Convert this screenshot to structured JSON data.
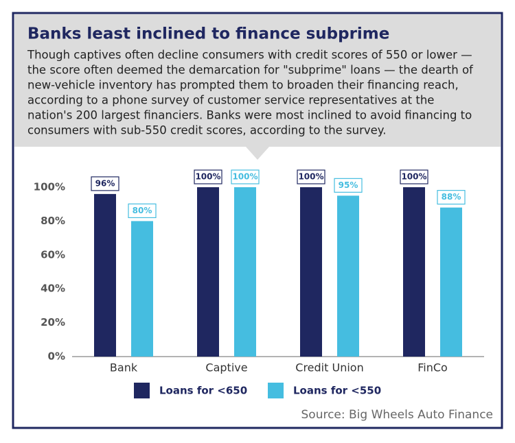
{
  "chart_data": {
    "type": "bar",
    "title": "Banks least inclined to finance subprime",
    "subtitle": [
      "Though captives often decline consumers with credit scores of 550 or lower —",
      "the score often deemed the demarcation for \"subprime\" loans — the dearth of",
      "new-vehicle inventory has prompted them to broaden their financing reach,",
      "according to a phone survey of customer service representatives at the",
      "nation's 200 largest financiers. Banks were most inclined to avoid financing to",
      "consumers with sub-550 credit scores, according to the survey."
    ],
    "categories": [
      "Bank",
      "Captive",
      "Credit Union",
      "FinCo"
    ],
    "series": [
      {
        "name": "Loans for <650",
        "color": "#1f2760",
        "values": [
          96,
          100,
          100,
          100
        ],
        "value_labels": [
          "96%",
          "100%",
          "100%",
          "100%"
        ]
      },
      {
        "name": "Loans for <550",
        "color": "#45bde0",
        "values": [
          80,
          100,
          95,
          88
        ],
        "value_labels": [
          "80%",
          "100%",
          "95%",
          "88%"
        ]
      }
    ],
    "ylim": [
      0,
      100
    ],
    "yticks": [
      {
        "value": 0,
        "label": "0%"
      },
      {
        "value": 20,
        "label": "20%"
      },
      {
        "value": 40,
        "label": "40%"
      },
      {
        "value": 60,
        "label": "60%"
      },
      {
        "value": 80,
        "label": "80%"
      },
      {
        "value": 100,
        "label": "100%"
      }
    ],
    "grid": false,
    "legend": "bottom",
    "source": "Source: Big Wheels Auto Finance"
  }
}
